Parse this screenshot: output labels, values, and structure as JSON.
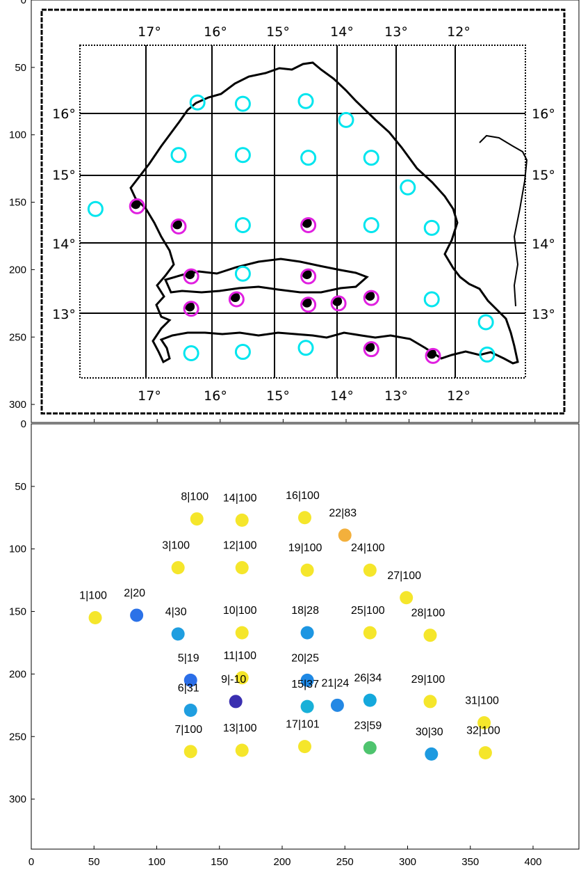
{
  "chart_data": [
    {
      "type": "image",
      "description_of_content": "scanned map with station markers",
      "xlim": [
        0,
        435
      ],
      "ylim": [
        0,
        315
      ],
      "y_ticks": [
        50,
        100,
        150,
        200,
        250,
        300,
        0
      ],
      "y_reversed": true,
      "grid": false,
      "map_lon_labels_top": [
        "17°",
        "16°",
        "15°",
        "14°",
        "13°",
        "12°"
      ],
      "map_lon_labels_bottom": [
        "17°",
        "16°",
        "15°",
        "14°",
        "13°",
        "12°"
      ],
      "map_lat_labels_left": [
        "16°",
        "15°",
        "14°",
        "13°"
      ],
      "map_lat_labels_right": [
        "16°",
        "15°",
        "14°",
        "13°"
      ],
      "marker_colors": {
        "cyan": "#00e5ee",
        "magenta": "#e020e0",
        "black": "#000000"
      },
      "markers": [
        {
          "x": 51,
          "y": 155,
          "style": "cyan"
        },
        {
          "x": 84,
          "y": 153,
          "style": "magenta",
          "filled_dot": true
        },
        {
          "x": 117,
          "y": 115,
          "style": "cyan"
        },
        {
          "x": 117,
          "y": 168,
          "style": "magenta",
          "filled_dot": true
        },
        {
          "x": 127,
          "y": 205,
          "style": "magenta",
          "filled_dot": true
        },
        {
          "x": 127,
          "y": 229,
          "style": "magenta",
          "filled_dot": true
        },
        {
          "x": 127,
          "y": 262,
          "style": "cyan"
        },
        {
          "x": 132,
          "y": 76,
          "style": "cyan"
        },
        {
          "x": 163,
          "y": 222,
          "style": "magenta",
          "filled_dot": true
        },
        {
          "x": 168,
          "y": 167,
          "style": "cyan"
        },
        {
          "x": 168,
          "y": 203,
          "style": "cyan"
        },
        {
          "x": 168,
          "y": 115,
          "style": "cyan"
        },
        {
          "x": 168,
          "y": 261,
          "style": "cyan"
        },
        {
          "x": 168,
          "y": 77,
          "style": "cyan"
        },
        {
          "x": 220,
          "y": 226,
          "style": "magenta",
          "filled_dot": true
        },
        {
          "x": 218,
          "y": 75,
          "style": "cyan"
        },
        {
          "x": 218,
          "y": 258,
          "style": "cyan"
        },
        {
          "x": 220,
          "y": 167,
          "style": "magenta",
          "filled_dot": true
        },
        {
          "x": 220,
          "y": 117,
          "style": "cyan"
        },
        {
          "x": 220,
          "y": 205,
          "style": "magenta",
          "filled_dot": true
        },
        {
          "x": 244,
          "y": 225,
          "style": "magenta",
          "filled_dot": true
        },
        {
          "x": 250,
          "y": 89,
          "style": "cyan"
        },
        {
          "x": 270,
          "y": 259,
          "style": "magenta",
          "filled_dot": true
        },
        {
          "x": 270,
          "y": 117,
          "style": "cyan"
        },
        {
          "x": 270,
          "y": 167,
          "style": "cyan"
        },
        {
          "x": 270,
          "y": 221,
          "style": "magenta",
          "filled_dot": true
        },
        {
          "x": 299,
          "y": 139,
          "style": "cyan"
        },
        {
          "x": 318,
          "y": 169,
          "style": "cyan"
        },
        {
          "x": 318,
          "y": 222,
          "style": "cyan"
        },
        {
          "x": 319,
          "y": 264,
          "style": "magenta",
          "filled_dot": true
        },
        {
          "x": 361,
          "y": 239,
          "style": "cyan"
        },
        {
          "x": 362,
          "y": 263,
          "style": "cyan"
        }
      ]
    },
    {
      "type": "scatter",
      "xlim": [
        0,
        440
      ],
      "ylim": [
        0,
        340
      ],
      "y_reversed": true,
      "x_ticks": [
        0,
        50,
        100,
        150,
        200,
        250,
        300,
        350,
        400
      ],
      "y_ticks": [
        50,
        100,
        150,
        200,
        250,
        300
      ],
      "grid": false,
      "colormap_note": "parula-like: dark blue (low) to yellow (high)",
      "points": [
        {
          "label": "1|100",
          "x": 51,
          "y": 155,
          "color": "#f5e62b"
        },
        {
          "label": "2|20",
          "x": 84,
          "y": 153,
          "color": "#2b72e8"
        },
        {
          "label": "3|100",
          "x": 117,
          "y": 115,
          "color": "#f5e62b"
        },
        {
          "label": "4|30",
          "x": 117,
          "y": 168,
          "color": "#1f9ee0"
        },
        {
          "label": "5|19",
          "x": 127,
          "y": 205,
          "color": "#2b6ee8"
        },
        {
          "label": "6|31",
          "x": 127,
          "y": 229,
          "color": "#1f9ee0"
        },
        {
          "label": "7|100",
          "x": 127,
          "y": 262,
          "color": "#f5e62b"
        },
        {
          "label": "8|100",
          "x": 132,
          "y": 76,
          "color": "#f5e62b"
        },
        {
          "label": "9|-10",
          "x": 163,
          "y": 222,
          "color": "#3a2fb0"
        },
        {
          "label": "10|100",
          "x": 168,
          "y": 167,
          "color": "#f5e62b"
        },
        {
          "label": "11|100",
          "x": 168,
          "y": 203,
          "color": "#f5e62b"
        },
        {
          "label": "12|100",
          "x": 168,
          "y": 115,
          "color": "#f5e62b"
        },
        {
          "label": "13|100",
          "x": 168,
          "y": 261,
          "color": "#f5e62b"
        },
        {
          "label": "14|100",
          "x": 168,
          "y": 77,
          "color": "#f5e62b"
        },
        {
          "label": "15|37",
          "x": 220,
          "y": 226,
          "color": "#18b0d8"
        },
        {
          "label": "16|100",
          "x": 218,
          "y": 75,
          "color": "#f5e62b"
        },
        {
          "label": "17|101",
          "x": 218,
          "y": 258,
          "color": "#f5e62b"
        },
        {
          "label": "18|28",
          "x": 220,
          "y": 167,
          "color": "#1d96e2"
        },
        {
          "label": "19|100",
          "x": 220,
          "y": 117,
          "color": "#f5e62b"
        },
        {
          "label": "20|25",
          "x": 220,
          "y": 205,
          "color": "#1e88e4"
        },
        {
          "label": "21|24",
          "x": 244,
          "y": 225,
          "color": "#2488e4"
        },
        {
          "label": "22|83",
          "x": 250,
          "y": 89,
          "color": "#f3b03c"
        },
        {
          "label": "23|59",
          "x": 270,
          "y": 259,
          "color": "#4ec46e"
        },
        {
          "label": "24|100",
          "x": 270,
          "y": 117,
          "color": "#f5e62b"
        },
        {
          "label": "25|100",
          "x": 270,
          "y": 167,
          "color": "#f5e62b"
        },
        {
          "label": "26|34",
          "x": 270,
          "y": 221,
          "color": "#14a8dc"
        },
        {
          "label": "27|100",
          "x": 299,
          "y": 139,
          "color": "#f5e62b"
        },
        {
          "label": "28|100",
          "x": 318,
          "y": 169,
          "color": "#f5e62b"
        },
        {
          "label": "29|100",
          "x": 318,
          "y": 222,
          "color": "#f5e62b"
        },
        {
          "label": "30|30",
          "x": 319,
          "y": 264,
          "color": "#1d9ae0"
        },
        {
          "label": "31|100",
          "x": 361,
          "y": 239,
          "color": "#f5e62b"
        },
        {
          "label": "32|100",
          "x": 362,
          "y": 263,
          "color": "#f5e62b"
        }
      ]
    }
  ]
}
